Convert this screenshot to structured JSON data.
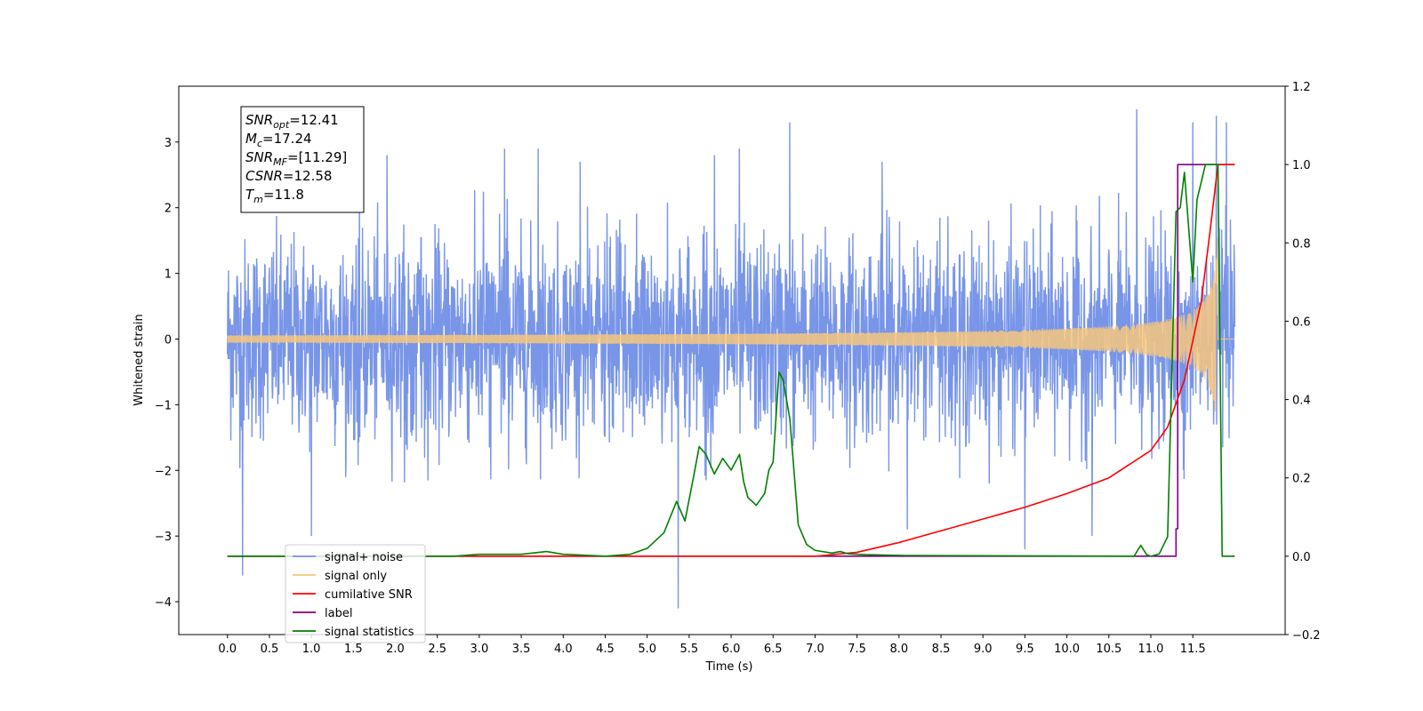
{
  "chart_data": {
    "type": "line",
    "xlabel": "Time (s)",
    "ylabel": "Whitened strain",
    "xlim": [
      -0.58,
      12.6
    ],
    "ylim_left": [
      -4.5,
      3.85
    ],
    "ylim_right": [
      -0.2,
      1.2
    ],
    "x_ticks": [
      "0.0",
      "0.5",
      "1.0",
      "1.5",
      "2.0",
      "2.5",
      "3.0",
      "3.5",
      "4.0",
      "4.5",
      "5.0",
      "5.5",
      "6.0",
      "6.5",
      "7.0",
      "7.5",
      "8.0",
      "8.5",
      "9.0",
      "9.5",
      "10.0",
      "10.5",
      "11.0",
      "11.5"
    ],
    "y_left_ticks": [
      "3",
      "2",
      "1",
      "0",
      "−1",
      "−2",
      "−3",
      "−4"
    ],
    "y_left_tick_values": [
      3,
      2,
      1,
      0,
      -1,
      -2,
      -3,
      -4
    ],
    "y_right_ticks": [
      "1.2",
      "1.0",
      "0.8",
      "0.6",
      "0.4",
      "0.2",
      "0.0",
      "−0.2"
    ],
    "y_right_tick_values": [
      1.2,
      1.0,
      0.8,
      0.6,
      0.4,
      0.2,
      0.0,
      -0.2
    ],
    "annotation": {
      "lines": [
        {
          "main": "SNR",
          "sub": "opt",
          "value": "=12.41"
        },
        {
          "main": "M",
          "sub": "c",
          "value": "=17.24"
        },
        {
          "main": "SNR",
          "sub": "MF",
          "value": "=[11.29]"
        },
        {
          "main": "CSNR",
          "sub": "",
          "value": "=12.58"
        },
        {
          "main": "T",
          "sub": "m",
          "value": "=11.8"
        }
      ]
    },
    "legend": {
      "placement": "lower-left",
      "entries": [
        {
          "label": "signal+ noise",
          "color": "#7895e8"
        },
        {
          "label": "signal only",
          "color": "#f7c77e"
        },
        {
          "label": "cumilative SNR",
          "color": "#ff0000"
        },
        {
          "label": "label",
          "color": "#800080"
        },
        {
          "label": "signal statistics",
          "color": "#008000"
        }
      ]
    },
    "series": [
      {
        "name": "signal+ noise",
        "axis": "left",
        "color": "#7895e8",
        "t_start": 0.0,
        "t_end": 12.0,
        "envelope_high": 2.3,
        "envelope_low": -2.2,
        "spikes": [
          {
            "x": 0.18,
            "y": -3.6
          },
          {
            "x": 1.0,
            "y": -3.0
          },
          {
            "x": 1.9,
            "y": 2.8
          },
          {
            "x": 3.3,
            "y": 2.9
          },
          {
            "x": 3.7,
            "y": 2.9
          },
          {
            "x": 4.2,
            "y": 2.7
          },
          {
            "x": 5.37,
            "y": -4.1
          },
          {
            "x": 5.8,
            "y": 2.8
          },
          {
            "x": 6.1,
            "y": 2.9
          },
          {
            "x": 6.7,
            "y": 3.3
          },
          {
            "x": 7.8,
            "y": 2.7
          },
          {
            "x": 8.1,
            "y": -2.9
          },
          {
            "x": 9.5,
            "y": -3.2
          },
          {
            "x": 10.3,
            "y": -3.0
          },
          {
            "x": 10.83,
            "y": 3.5
          },
          {
            "x": 11.5,
            "y": 3.3
          },
          {
            "x": 11.78,
            "y": 3.4
          },
          {
            "x": 11.9,
            "y": 3.3
          }
        ]
      },
      {
        "name": "signal only",
        "axis": "left",
        "color": "#f7c77e",
        "chirp_f0": 22,
        "chirp_amp_end": 1.6,
        "t_coalescence": 11.8
      },
      {
        "name": "cumilative SNR",
        "axis": "right",
        "color": "#ff0000",
        "x": [
          0.0,
          7.0,
          7.5,
          8.0,
          8.5,
          9.0,
          9.5,
          10.0,
          10.5,
          11.0,
          11.2,
          11.4,
          11.6,
          11.7,
          11.8,
          12.0
        ],
        "y": [
          0.0,
          0.0,
          0.01,
          0.035,
          0.065,
          0.095,
          0.125,
          0.16,
          0.2,
          0.27,
          0.33,
          0.45,
          0.65,
          0.82,
          1.0,
          1.0
        ]
      },
      {
        "name": "label",
        "axis": "right",
        "color": "#800080",
        "x": [
          0.0,
          11.3,
          11.3,
          11.32,
          11.32,
          12.0
        ],
        "y": [
          0.0,
          0.0,
          0.07,
          0.07,
          1.0,
          1.0
        ]
      },
      {
        "name": "signal statistics",
        "axis": "right",
        "color": "#008000",
        "x": [
          0.0,
          2.7,
          3.0,
          3.5,
          3.8,
          4.0,
          4.5,
          4.8,
          5.0,
          5.2,
          5.35,
          5.45,
          5.55,
          5.62,
          5.7,
          5.8,
          5.9,
          6.0,
          6.1,
          6.15,
          6.2,
          6.3,
          6.4,
          6.45,
          6.5,
          6.57,
          6.62,
          6.7,
          6.8,
          6.9,
          7.0,
          7.2,
          7.3,
          7.4,
          7.6,
          8.0,
          10.8,
          10.88,
          10.95,
          11.0,
          11.1,
          11.2,
          11.3,
          11.35,
          11.4,
          11.5,
          11.55,
          11.65,
          11.7,
          11.75,
          11.8,
          11.85,
          11.95,
          12.0
        ],
        "y": [
          0.0,
          0.0,
          0.005,
          0.005,
          0.012,
          0.005,
          0.0,
          0.005,
          0.02,
          0.06,
          0.14,
          0.09,
          0.2,
          0.28,
          0.26,
          0.21,
          0.25,
          0.22,
          0.26,
          0.19,
          0.15,
          0.13,
          0.16,
          0.22,
          0.24,
          0.47,
          0.45,
          0.35,
          0.08,
          0.03,
          0.015,
          0.008,
          0.012,
          0.006,
          0.004,
          0.002,
          0.0,
          0.028,
          0.004,
          0.0,
          0.006,
          0.05,
          0.88,
          0.89,
          0.98,
          0.7,
          0.91,
          1.0,
          1.0,
          1.0,
          1.0,
          0.0,
          0.0,
          0.0
        ]
      }
    ]
  }
}
